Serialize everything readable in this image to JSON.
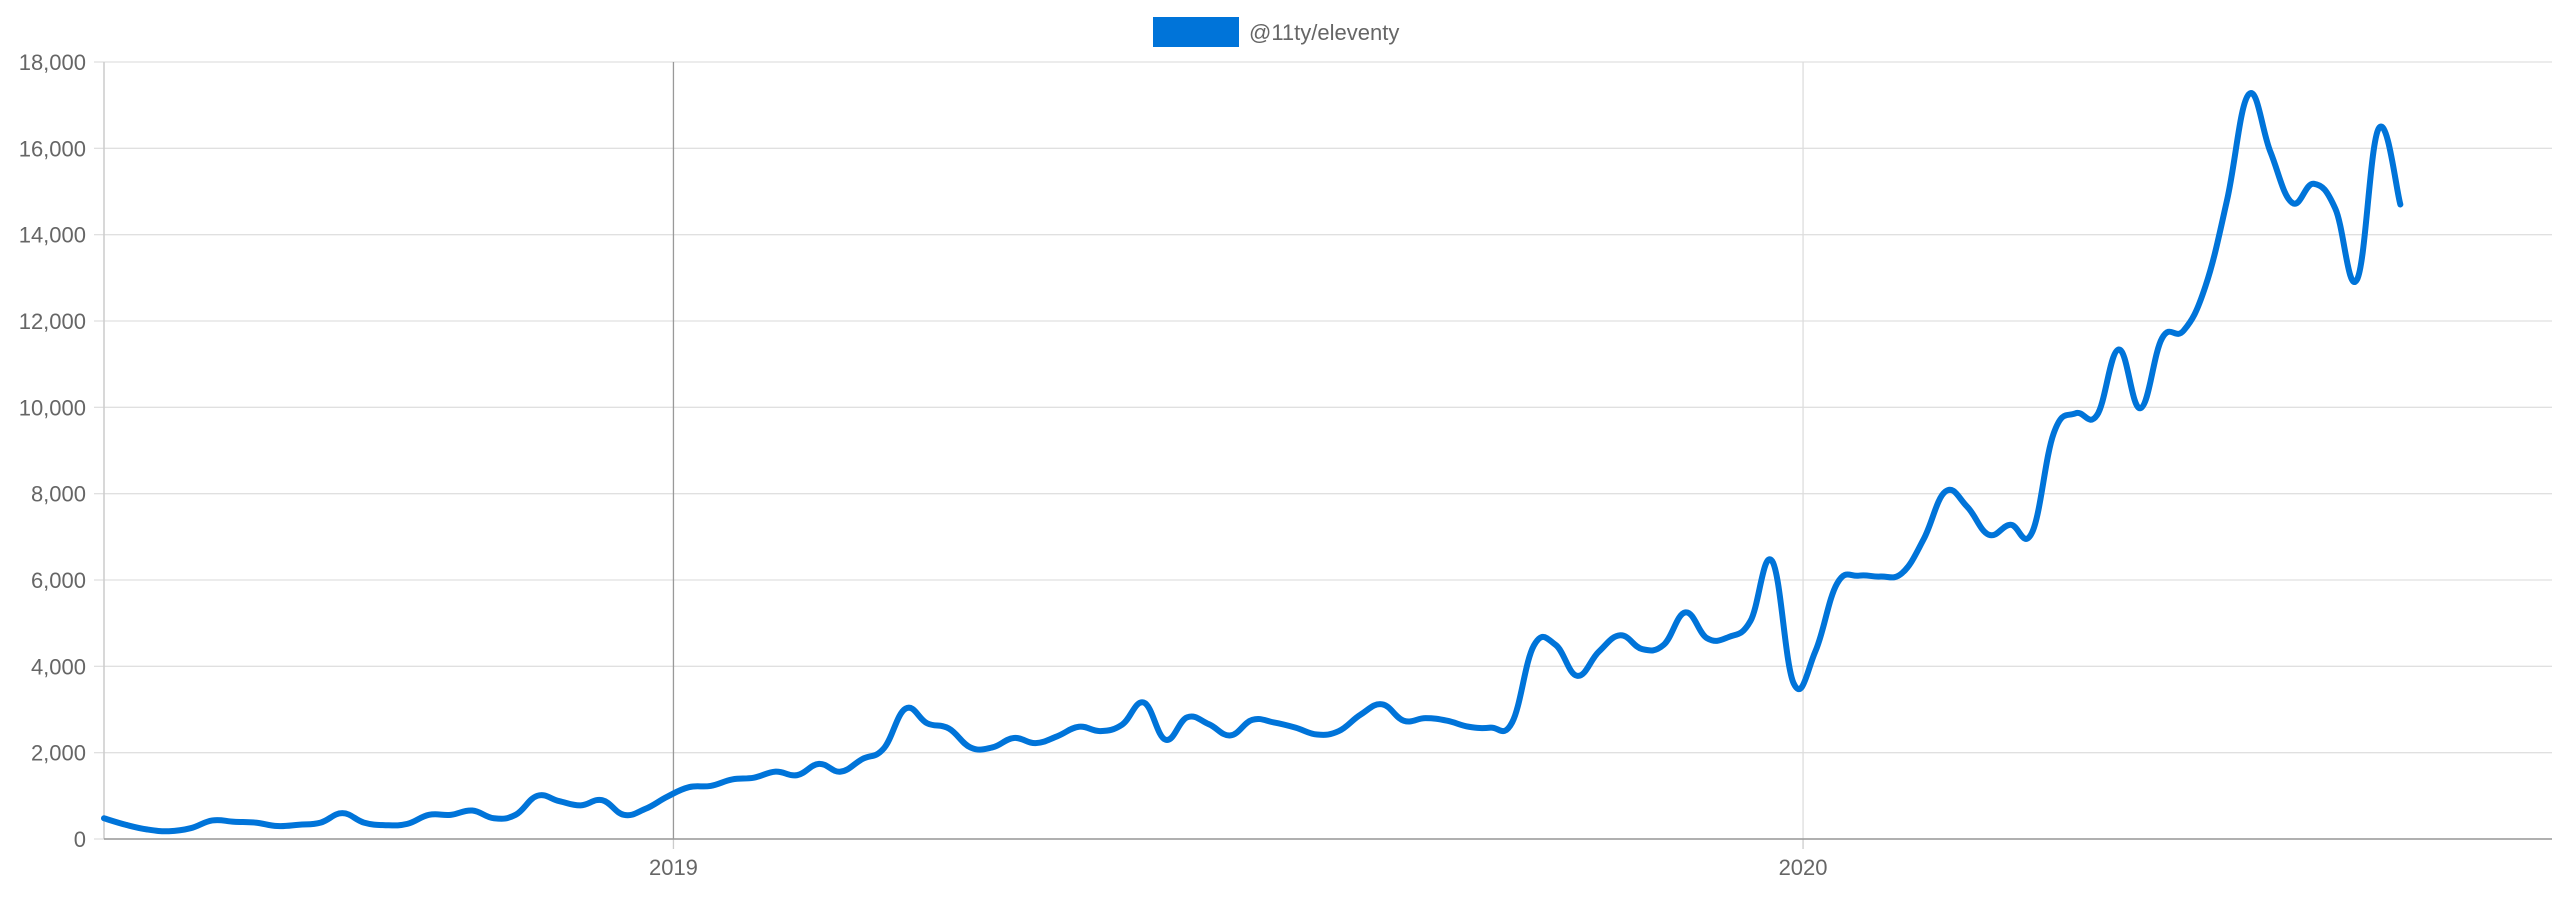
{
  "chart_data": {
    "type": "line",
    "legend_position": "top-center",
    "grid": true,
    "ylim": [
      0,
      18000
    ],
    "yticks": [
      0,
      2000,
      4000,
      6000,
      8000,
      10000,
      12000,
      14000,
      16000,
      18000
    ],
    "ytick_labels": [
      "0",
      "2,000",
      "4,000",
      "6,000",
      "8,000",
      "10,000",
      "12,000",
      "14,000",
      "16,000",
      "18,000"
    ],
    "xlim": [
      "2018-07-01",
      "2020-08-30"
    ],
    "xticks": [
      {
        "date": "2019-01-01",
        "label": "2019"
      },
      {
        "date": "2020-01-01",
        "label": "2020"
      }
    ],
    "series": [
      {
        "name": "@11ty/eleventy",
        "color": "#0074d9",
        "points": [
          [
            "2018-07-01",
            480
          ],
          [
            "2018-07-08",
            330
          ],
          [
            "2018-07-15",
            220
          ],
          [
            "2018-07-22",
            180
          ],
          [
            "2018-07-29",
            250
          ],
          [
            "2018-08-05",
            430
          ],
          [
            "2018-08-12",
            400
          ],
          [
            "2018-08-19",
            380
          ],
          [
            "2018-08-26",
            300
          ],
          [
            "2018-09-02",
            330
          ],
          [
            "2018-09-09",
            380
          ],
          [
            "2018-09-16",
            600
          ],
          [
            "2018-09-23",
            380
          ],
          [
            "2018-09-30",
            320
          ],
          [
            "2018-10-07",
            350
          ],
          [
            "2018-10-14",
            560
          ],
          [
            "2018-10-21",
            560
          ],
          [
            "2018-10-28",
            660
          ],
          [
            "2018-11-04",
            480
          ],
          [
            "2018-11-11",
            560
          ],
          [
            "2018-11-18",
            1000
          ],
          [
            "2018-11-25",
            880
          ],
          [
            "2018-12-02",
            780
          ],
          [
            "2018-12-09",
            900
          ],
          [
            "2018-12-16",
            560
          ],
          [
            "2018-12-23",
            700
          ],
          [
            "2018-12-30",
            980
          ],
          [
            "2019-01-06",
            1200
          ],
          [
            "2019-01-13",
            1230
          ],
          [
            "2019-01-20",
            1380
          ],
          [
            "2019-01-27",
            1420
          ],
          [
            "2019-02-03",
            1560
          ],
          [
            "2019-02-10",
            1480
          ],
          [
            "2019-02-17",
            1740
          ],
          [
            "2019-02-24",
            1560
          ],
          [
            "2019-03-03",
            1850
          ],
          [
            "2019-03-10",
            2100
          ],
          [
            "2019-03-17",
            3020
          ],
          [
            "2019-03-24",
            2680
          ],
          [
            "2019-03-31",
            2560
          ],
          [
            "2019-04-07",
            2120
          ],
          [
            "2019-04-14",
            2120
          ],
          [
            "2019-04-21",
            2340
          ],
          [
            "2019-04-28",
            2220
          ],
          [
            "2019-05-05",
            2380
          ],
          [
            "2019-05-12",
            2600
          ],
          [
            "2019-05-19",
            2500
          ],
          [
            "2019-05-26",
            2650
          ],
          [
            "2019-06-02",
            3160
          ],
          [
            "2019-06-09",
            2300
          ],
          [
            "2019-06-16",
            2820
          ],
          [
            "2019-06-23",
            2660
          ],
          [
            "2019-06-30",
            2400
          ],
          [
            "2019-07-07",
            2760
          ],
          [
            "2019-07-14",
            2700
          ],
          [
            "2019-07-21",
            2580
          ],
          [
            "2019-07-28",
            2420
          ],
          [
            "2019-08-04",
            2500
          ],
          [
            "2019-08-11",
            2880
          ],
          [
            "2019-08-18",
            3120
          ],
          [
            "2019-08-25",
            2740
          ],
          [
            "2019-09-01",
            2800
          ],
          [
            "2019-09-08",
            2740
          ],
          [
            "2019-09-15",
            2600
          ],
          [
            "2019-09-22",
            2580
          ],
          [
            "2019-09-29",
            2700
          ],
          [
            "2019-10-06",
            4480
          ],
          [
            "2019-10-13",
            4500
          ],
          [
            "2019-10-20",
            3780
          ],
          [
            "2019-10-27",
            4340
          ],
          [
            "2019-11-03",
            4720
          ],
          [
            "2019-11-10",
            4400
          ],
          [
            "2019-11-17",
            4500
          ],
          [
            "2019-11-24",
            5250
          ],
          [
            "2019-12-01",
            4650
          ],
          [
            "2019-12-08",
            4680
          ],
          [
            "2019-12-15",
            5050
          ],
          [
            "2019-12-22",
            6440
          ],
          [
            "2019-12-29",
            3600
          ],
          [
            "2020-01-05",
            4350
          ],
          [
            "2020-01-12",
            5920
          ],
          [
            "2020-01-19",
            6100
          ],
          [
            "2020-01-26",
            6080
          ],
          [
            "2020-02-02",
            6160
          ],
          [
            "2020-02-09",
            6950
          ],
          [
            "2020-02-16",
            8050
          ],
          [
            "2020-02-23",
            7700
          ],
          [
            "2020-03-01",
            7050
          ],
          [
            "2020-03-08",
            7280
          ],
          [
            "2020-03-15",
            7100
          ],
          [
            "2020-03-22",
            9400
          ],
          [
            "2020-03-29",
            9860
          ],
          [
            "2020-04-05",
            9820
          ],
          [
            "2020-04-12",
            11340
          ],
          [
            "2020-04-19",
            9980
          ],
          [
            "2020-04-26",
            11600
          ],
          [
            "2020-05-03",
            11780
          ],
          [
            "2020-05-10",
            12800
          ],
          [
            "2020-05-17",
            14800
          ],
          [
            "2020-05-24",
            17250
          ],
          [
            "2020-05-31",
            15920
          ],
          [
            "2020-06-07",
            14740
          ],
          [
            "2020-06-14",
            15180
          ],
          [
            "2020-06-21",
            14600
          ],
          [
            "2020-06-28",
            12960
          ],
          [
            "2020-07-05",
            16460
          ],
          [
            "2020-07-12",
            14700
          ]
        ]
      }
    ]
  }
}
